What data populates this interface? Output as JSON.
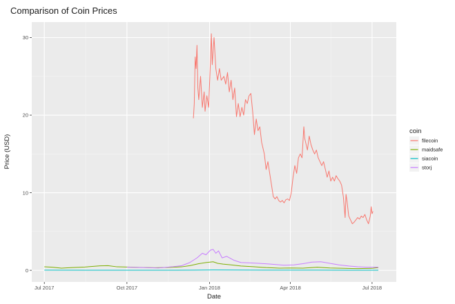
{
  "chart_data": {
    "type": "line",
    "title": "Comparison of Coin Prices",
    "xlabel": "Date",
    "ylabel": "Price (USD)",
    "xlim": [
      "2017-06-17",
      "2018-07-28"
    ],
    "ylim": [
      -1.5,
      32
    ],
    "x_ticks": [
      {
        "date": "2017-07-01",
        "label": "Jul 2017"
      },
      {
        "date": "2017-10-01",
        "label": "Oct 2017"
      },
      {
        "date": "2018-01-01",
        "label": "Jan 2018"
      },
      {
        "date": "2018-04-01",
        "label": "Apr 2018"
      },
      {
        "date": "2018-07-01",
        "label": "Jul 2018"
      }
    ],
    "y_ticks": [
      0,
      10,
      20,
      30
    ],
    "grid": true,
    "legend": {
      "title": "coin",
      "position": "right"
    },
    "series": [
      {
        "name": "filecoin",
        "color": "#F8766D",
        "points": [
          [
            "2017-12-14",
            19.6
          ],
          [
            "2017-12-15",
            21.5
          ],
          [
            "2017-12-16",
            27.5
          ],
          [
            "2017-12-17",
            26.0
          ],
          [
            "2017-12-18",
            29.0
          ],
          [
            "2017-12-19",
            23.5
          ],
          [
            "2017-12-20",
            22.0
          ],
          [
            "2017-12-22",
            25.0
          ],
          [
            "2017-12-24",
            21.0
          ],
          [
            "2017-12-26",
            23.0
          ],
          [
            "2017-12-27",
            20.5
          ],
          [
            "2017-12-29",
            22.5
          ],
          [
            "2017-12-31",
            21.0
          ],
          [
            "2018-01-02",
            27.0
          ],
          [
            "2018-01-03",
            30.5
          ],
          [
            "2018-01-04",
            26.5
          ],
          [
            "2018-01-06",
            30.0
          ],
          [
            "2018-01-08",
            26.0
          ],
          [
            "2018-01-10",
            24.5
          ],
          [
            "2018-01-12",
            26.0
          ],
          [
            "2018-01-14",
            24.5
          ],
          [
            "2018-01-17",
            25.0
          ],
          [
            "2018-01-19",
            24.0
          ],
          [
            "2018-01-21",
            25.5
          ],
          [
            "2018-01-23",
            23.0
          ],
          [
            "2018-01-25",
            24.5
          ],
          [
            "2018-01-27",
            22.0
          ],
          [
            "2018-01-29",
            23.5
          ],
          [
            "2018-01-31",
            19.8
          ],
          [
            "2018-02-02",
            21.5
          ],
          [
            "2018-02-04",
            19.8
          ],
          [
            "2018-02-06",
            21.0
          ],
          [
            "2018-02-08",
            20.0
          ],
          [
            "2018-02-10",
            22.0
          ],
          [
            "2018-02-12",
            21.5
          ],
          [
            "2018-02-14",
            22.5
          ],
          [
            "2018-02-16",
            22.8
          ],
          [
            "2018-02-18",
            20.5
          ],
          [
            "2018-02-20",
            17.5
          ],
          [
            "2018-02-22",
            19.5
          ],
          [
            "2018-02-24",
            18.0
          ],
          [
            "2018-02-26",
            18.5
          ],
          [
            "2018-02-28",
            16.5
          ],
          [
            "2018-03-03",
            15.0
          ],
          [
            "2018-03-05",
            13.0
          ],
          [
            "2018-03-07",
            14.0
          ],
          [
            "2018-03-09",
            12.5
          ],
          [
            "2018-03-11",
            11.0
          ],
          [
            "2018-03-13",
            9.5
          ],
          [
            "2018-03-15",
            9.2
          ],
          [
            "2018-03-17",
            9.5
          ],
          [
            "2018-03-19",
            9.0
          ],
          [
            "2018-03-21",
            8.8
          ],
          [
            "2018-03-23",
            9.0
          ],
          [
            "2018-03-25",
            8.7
          ],
          [
            "2018-03-27",
            9.1
          ],
          [
            "2018-03-29",
            9.2
          ],
          [
            "2018-03-31",
            9.0
          ],
          [
            "2018-04-02",
            10.0
          ],
          [
            "2018-04-04",
            12.0
          ],
          [
            "2018-04-06",
            13.5
          ],
          [
            "2018-04-08",
            12.5
          ],
          [
            "2018-04-10",
            14.5
          ],
          [
            "2018-04-12",
            15.0
          ],
          [
            "2018-04-14",
            14.5
          ],
          [
            "2018-04-16",
            18.5
          ],
          [
            "2018-04-17",
            17.0
          ],
          [
            "2018-04-19",
            16.0
          ],
          [
            "2018-04-20",
            15.5
          ],
          [
            "2018-04-22",
            17.3
          ],
          [
            "2018-04-24",
            16.2
          ],
          [
            "2018-04-26",
            15.5
          ],
          [
            "2018-04-28",
            15.0
          ],
          [
            "2018-04-30",
            15.5
          ],
          [
            "2018-05-02",
            14.5
          ],
          [
            "2018-05-04",
            14.0
          ],
          [
            "2018-05-06",
            13.5
          ],
          [
            "2018-05-08",
            14.0
          ],
          [
            "2018-05-10",
            13.0
          ],
          [
            "2018-05-12",
            12.0
          ],
          [
            "2018-05-14",
            12.8
          ],
          [
            "2018-05-16",
            11.5
          ],
          [
            "2018-05-18",
            12.0
          ],
          [
            "2018-05-20",
            11.5
          ],
          [
            "2018-05-22",
            12.2
          ],
          [
            "2018-05-24",
            11.8
          ],
          [
            "2018-05-26",
            11.5
          ],
          [
            "2018-05-28",
            11.0
          ],
          [
            "2018-05-30",
            9.5
          ],
          [
            "2018-06-01",
            6.8
          ],
          [
            "2018-06-02",
            9.8
          ],
          [
            "2018-06-03",
            9.0
          ],
          [
            "2018-06-05",
            7.0
          ],
          [
            "2018-06-07",
            6.5
          ],
          [
            "2018-06-09",
            6.0
          ],
          [
            "2018-06-11",
            6.2
          ],
          [
            "2018-06-13",
            6.5
          ],
          [
            "2018-06-15",
            6.8
          ],
          [
            "2018-06-17",
            6.6
          ],
          [
            "2018-06-19",
            7.0
          ],
          [
            "2018-06-21",
            6.8
          ],
          [
            "2018-06-23",
            7.2
          ],
          [
            "2018-06-25",
            6.5
          ],
          [
            "2018-06-27",
            6.0
          ],
          [
            "2018-06-29",
            7.0
          ],
          [
            "2018-06-30",
            8.2
          ],
          [
            "2018-07-01",
            7.3
          ],
          [
            "2018-07-02",
            7.6
          ]
        ]
      },
      {
        "name": "maidsafe",
        "color": "#7CAE00",
        "points": [
          [
            "2017-07-01",
            0.45
          ],
          [
            "2017-07-10",
            0.4
          ],
          [
            "2017-07-20",
            0.28
          ],
          [
            "2017-08-01",
            0.35
          ],
          [
            "2017-08-15",
            0.42
          ],
          [
            "2017-09-01",
            0.58
          ],
          [
            "2017-09-10",
            0.6
          ],
          [
            "2017-09-20",
            0.45
          ],
          [
            "2017-10-01",
            0.42
          ],
          [
            "2017-10-15",
            0.38
          ],
          [
            "2017-11-01",
            0.33
          ],
          [
            "2017-11-15",
            0.37
          ],
          [
            "2017-12-01",
            0.45
          ],
          [
            "2017-12-10",
            0.6
          ],
          [
            "2017-12-20",
            0.85
          ],
          [
            "2017-12-28",
            1.0
          ],
          [
            "2018-01-05",
            1.1
          ],
          [
            "2018-01-10",
            0.9
          ],
          [
            "2018-01-16",
            0.8
          ],
          [
            "2018-01-25",
            0.7
          ],
          [
            "2018-02-05",
            0.55
          ],
          [
            "2018-02-20",
            0.45
          ],
          [
            "2018-03-05",
            0.35
          ],
          [
            "2018-03-20",
            0.28
          ],
          [
            "2018-04-01",
            0.3
          ],
          [
            "2018-04-15",
            0.28
          ],
          [
            "2018-05-01",
            0.4
          ],
          [
            "2018-05-15",
            0.3
          ],
          [
            "2018-06-01",
            0.25
          ],
          [
            "2018-06-15",
            0.22
          ],
          [
            "2018-07-01",
            0.25
          ],
          [
            "2018-07-08",
            0.35
          ]
        ]
      },
      {
        "name": "siacoin",
        "color": "#00BFC4",
        "points": [
          [
            "2017-07-01",
            0.02
          ],
          [
            "2017-09-01",
            0.01
          ],
          [
            "2017-11-01",
            0.01
          ],
          [
            "2017-12-15",
            0.02
          ],
          [
            "2018-01-05",
            0.04
          ],
          [
            "2018-02-01",
            0.03
          ],
          [
            "2018-03-01",
            0.02
          ],
          [
            "2018-05-01",
            0.02
          ],
          [
            "2018-07-08",
            0.01
          ]
        ]
      },
      {
        "name": "storj",
        "color": "#C77CFF",
        "points": [
          [
            "2017-10-01",
            0.4
          ],
          [
            "2017-10-20",
            0.35
          ],
          [
            "2017-11-05",
            0.3
          ],
          [
            "2017-11-20",
            0.45
          ],
          [
            "2017-12-01",
            0.6
          ],
          [
            "2017-12-10",
            1.0
          ],
          [
            "2017-12-18",
            1.6
          ],
          [
            "2017-12-24",
            2.2
          ],
          [
            "2017-12-28",
            2.0
          ],
          [
            "2018-01-02",
            2.6
          ],
          [
            "2018-01-05",
            2.7
          ],
          [
            "2018-01-08",
            2.2
          ],
          [
            "2018-01-11",
            2.5
          ],
          [
            "2018-01-15",
            1.6
          ],
          [
            "2018-01-20",
            1.8
          ],
          [
            "2018-01-28",
            1.3
          ],
          [
            "2018-02-05",
            1.0
          ],
          [
            "2018-02-15",
            0.95
          ],
          [
            "2018-02-25",
            0.9
          ],
          [
            "2018-03-10",
            0.8
          ],
          [
            "2018-03-25",
            0.65
          ],
          [
            "2018-04-05",
            0.7
          ],
          [
            "2018-04-15",
            0.85
          ],
          [
            "2018-04-25",
            1.05
          ],
          [
            "2018-05-05",
            1.1
          ],
          [
            "2018-05-15",
            0.9
          ],
          [
            "2018-05-25",
            0.7
          ],
          [
            "2018-06-05",
            0.55
          ],
          [
            "2018-06-15",
            0.45
          ],
          [
            "2018-06-25",
            0.4
          ],
          [
            "2018-07-08",
            0.4
          ]
        ]
      }
    ]
  }
}
